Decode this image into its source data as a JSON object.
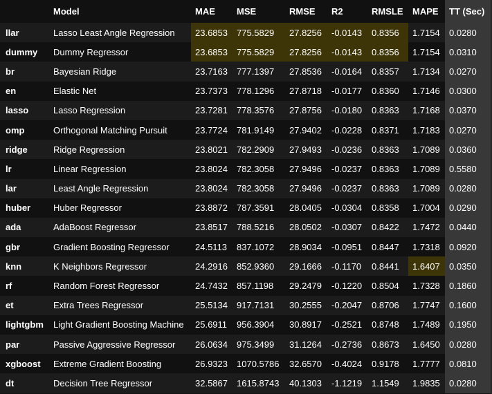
{
  "table": {
    "columns": [
      "",
      "Model",
      "MAE",
      "MSE",
      "RMSE",
      "R2",
      "RMSLE",
      "MAPE",
      "TT (Sec)"
    ],
    "highlight_color": "#3d3407",
    "rows": [
      {
        "id": "llar",
        "model": "Lasso Least Angle Regression",
        "mae": "23.6853",
        "mse": "775.5829",
        "rmse": "27.8256",
        "r2": "-0.0143",
        "rmsle": "0.8356",
        "mape": "1.7154",
        "tt": "0.0280",
        "best": [
          "mae",
          "mse",
          "rmse",
          "r2",
          "rmsle"
        ]
      },
      {
        "id": "dummy",
        "model": "Dummy Regressor",
        "mae": "23.6853",
        "mse": "775.5829",
        "rmse": "27.8256",
        "r2": "-0.0143",
        "rmsle": "0.8356",
        "mape": "1.7154",
        "tt": "0.0310",
        "best": [
          "mae",
          "mse",
          "rmse",
          "r2",
          "rmsle"
        ]
      },
      {
        "id": "br",
        "model": "Bayesian Ridge",
        "mae": "23.7163",
        "mse": "777.1397",
        "rmse": "27.8536",
        "r2": "-0.0164",
        "rmsle": "0.8357",
        "mape": "1.7134",
        "tt": "0.0270",
        "best": []
      },
      {
        "id": "en",
        "model": "Elastic Net",
        "mae": "23.7373",
        "mse": "778.1296",
        "rmse": "27.8718",
        "r2": "-0.0177",
        "rmsle": "0.8360",
        "mape": "1.7146",
        "tt": "0.0300",
        "best": []
      },
      {
        "id": "lasso",
        "model": "Lasso Regression",
        "mae": "23.7281",
        "mse": "778.3576",
        "rmse": "27.8756",
        "r2": "-0.0180",
        "rmsle": "0.8363",
        "mape": "1.7168",
        "tt": "0.0370",
        "best": []
      },
      {
        "id": "omp",
        "model": "Orthogonal Matching Pursuit",
        "mae": "23.7724",
        "mse": "781.9149",
        "rmse": "27.9402",
        "r2": "-0.0228",
        "rmsle": "0.8371",
        "mape": "1.7183",
        "tt": "0.0270",
        "best": []
      },
      {
        "id": "ridge",
        "model": "Ridge Regression",
        "mae": "23.8021",
        "mse": "782.2909",
        "rmse": "27.9493",
        "r2": "-0.0236",
        "rmsle": "0.8363",
        "mape": "1.7089",
        "tt": "0.0360",
        "best": []
      },
      {
        "id": "lr",
        "model": "Linear Regression",
        "mae": "23.8024",
        "mse": "782.3058",
        "rmse": "27.9496",
        "r2": "-0.0237",
        "rmsle": "0.8363",
        "mape": "1.7089",
        "tt": "0.5580",
        "best": []
      },
      {
        "id": "lar",
        "model": "Least Angle Regression",
        "mae": "23.8024",
        "mse": "782.3058",
        "rmse": "27.9496",
        "r2": "-0.0237",
        "rmsle": "0.8363",
        "mape": "1.7089",
        "tt": "0.0280",
        "best": []
      },
      {
        "id": "huber",
        "model": "Huber Regressor",
        "mae": "23.8872",
        "mse": "787.3591",
        "rmse": "28.0405",
        "r2": "-0.0304",
        "rmsle": "0.8358",
        "mape": "1.7004",
        "tt": "0.0290",
        "best": []
      },
      {
        "id": "ada",
        "model": "AdaBoost Regressor",
        "mae": "23.8517",
        "mse": "788.5216",
        "rmse": "28.0502",
        "r2": "-0.0307",
        "rmsle": "0.8422",
        "mape": "1.7472",
        "tt": "0.0440",
        "best": []
      },
      {
        "id": "gbr",
        "model": "Gradient Boosting Regressor",
        "mae": "24.5113",
        "mse": "837.1072",
        "rmse": "28.9034",
        "r2": "-0.0951",
        "rmsle": "0.8447",
        "mape": "1.7318",
        "tt": "0.0920",
        "best": []
      },
      {
        "id": "knn",
        "model": "K Neighbors Regressor",
        "mae": "24.2916",
        "mse": "852.9360",
        "rmse": "29.1666",
        "r2": "-0.1170",
        "rmsle": "0.8441",
        "mape": "1.6407",
        "tt": "0.0350",
        "best": [
          "mape"
        ]
      },
      {
        "id": "rf",
        "model": "Random Forest Regressor",
        "mae": "24.7432",
        "mse": "857.1198",
        "rmse": "29.2479",
        "r2": "-0.1220",
        "rmsle": "0.8504",
        "mape": "1.7328",
        "tt": "0.1860",
        "best": []
      },
      {
        "id": "et",
        "model": "Extra Trees Regressor",
        "mae": "25.5134",
        "mse": "917.7131",
        "rmse": "30.2555",
        "r2": "-0.2047",
        "rmsle": "0.8706",
        "mape": "1.7747",
        "tt": "0.1600",
        "best": []
      },
      {
        "id": "lightgbm",
        "model": "Light Gradient Boosting Machine",
        "mae": "25.6911",
        "mse": "956.3904",
        "rmse": "30.8917",
        "r2": "-0.2521",
        "rmsle": "0.8748",
        "mape": "1.7489",
        "tt": "0.1950",
        "best": []
      },
      {
        "id": "par",
        "model": "Passive Aggressive Regressor",
        "mae": "26.0634",
        "mse": "975.3499",
        "rmse": "31.1264",
        "r2": "-0.2736",
        "rmsle": "0.8673",
        "mape": "1.6450",
        "tt": "0.0280",
        "best": []
      },
      {
        "id": "xgboost",
        "model": "Extreme Gradient Boosting",
        "mae": "26.9323",
        "mse": "1070.5786",
        "rmse": "32.6570",
        "r2": "-0.4024",
        "rmsle": "0.9178",
        "mape": "1.7777",
        "tt": "0.0810",
        "best": []
      },
      {
        "id": "dt",
        "model": "Decision Tree Regressor",
        "mae": "32.5867",
        "mse": "1615.8743",
        "rmse": "40.1303",
        "r2": "-1.1219",
        "rmsle": "1.1549",
        "mape": "1.9835",
        "tt": "0.0280",
        "best": []
      }
    ]
  }
}
